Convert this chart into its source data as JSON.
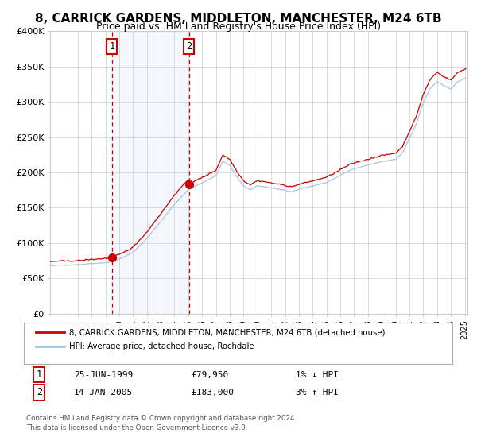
{
  "title": "8, CARRICK GARDENS, MIDDLETON, MANCHESTER, M24 6TB",
  "subtitle": "Price paid vs. HM Land Registry's House Price Index (HPI)",
  "title_fontsize": 11,
  "subtitle_fontsize": 9,
  "background_color": "#ffffff",
  "plot_bg_color": "#ffffff",
  "grid_color": "#cccccc",
  "hpi_color": "#aac4e0",
  "property_color": "#cc0000",
  "purchase1_date": "25-JUN-1999",
  "purchase1_price": 79950,
  "purchase1_label": "1% ↓ HPI",
  "purchase2_date": "14-JAN-2005",
  "purchase2_price": 183000,
  "purchase2_label": "3% ↑ HPI",
  "vline1_year": 1999.48,
  "vline2_year": 2005.04,
  "marker1_year": 1999.48,
  "marker1_price": 79950,
  "marker2_year": 2005.04,
  "marker2_price": 183000,
  "ylim": [
    0,
    400000
  ],
  "xlim_start": 1995.0,
  "xlim_end": 2025.2,
  "legend_property": "8, CARRICK GARDENS, MIDDLETON, MANCHESTER, M24 6TB (detached house)",
  "legend_hpi": "HPI: Average price, detached house, Rochdale",
  "footnote1": "Contains HM Land Registry data © Crown copyright and database right 2024.",
  "footnote2": "This data is licensed under the Open Government Licence v3.0."
}
